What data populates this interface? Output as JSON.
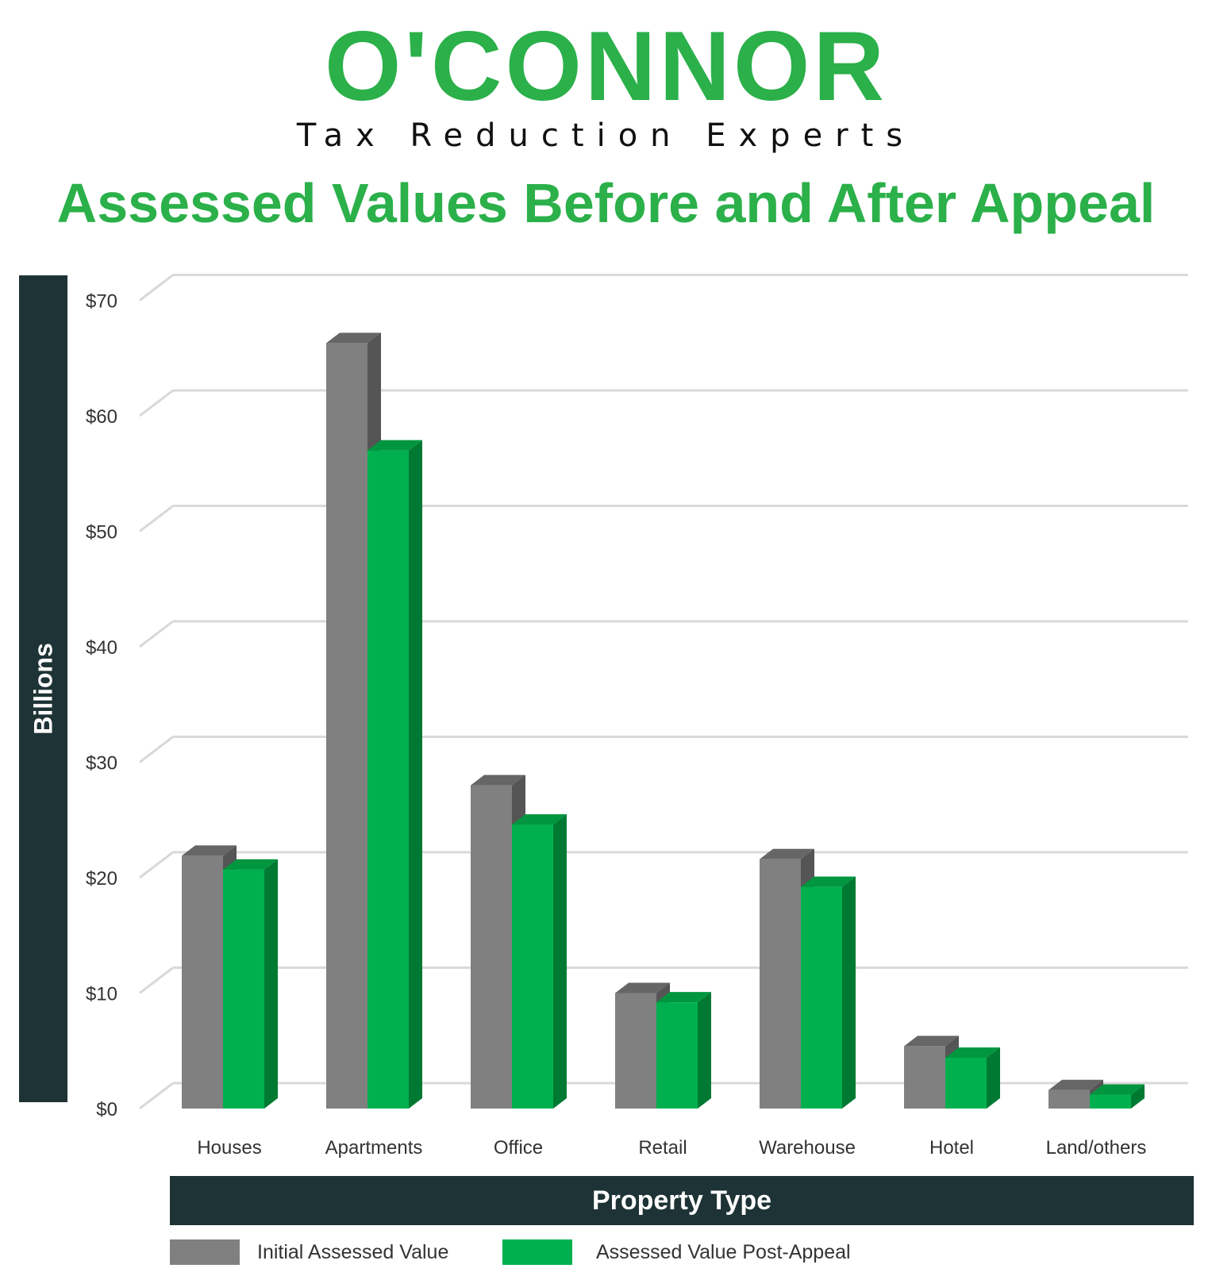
{
  "brand": {
    "name": "O'CONNOR",
    "tagline": "Tax Reduction Experts",
    "color": "#2bb04a"
  },
  "chart_data": {
    "type": "bar",
    "title": "Assessed Values Before and After Appeal",
    "xlabel": "Property Type",
    "ylabel": "Billions",
    "ylim": [
      0,
      70
    ],
    "yticks": [
      0,
      10,
      20,
      30,
      40,
      50,
      60,
      70
    ],
    "ytick_labels": [
      "$0",
      "$10",
      "$20",
      "$30",
      "$40",
      "$50",
      "$60",
      "$70"
    ],
    "grid": true,
    "legend_position": "bottom",
    "categories": [
      "Houses",
      "Apartments",
      "Office",
      "Retail",
      "Warehouse",
      "Hotel",
      "Land/others"
    ],
    "series": [
      {
        "name": "Initial Assessed Value",
        "color": "#808080",
        "top_color": "#666666",
        "side_color": "#555555",
        "values": [
          21.9,
          66.3,
          28.0,
          10.0,
          21.6,
          5.4,
          1.6
        ]
      },
      {
        "name": "Assessed Value Post-Appeal",
        "color": "#00b04f",
        "top_color": "#00963f",
        "side_color": "#007a33",
        "values": [
          20.7,
          57.0,
          24.6,
          9.2,
          19.2,
          4.4,
          1.2
        ]
      }
    ]
  }
}
